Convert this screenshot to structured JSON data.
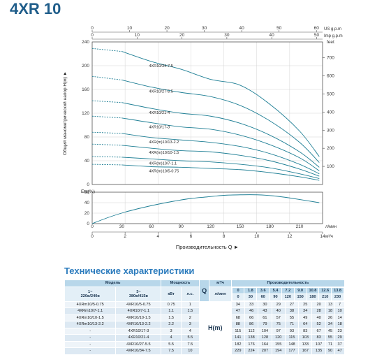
{
  "title": "4XR 10",
  "chart_data": [
    {
      "type": "line",
      "title": "4XR 10",
      "ylabel": "Общий манометрический напор H(м)",
      "ylabel_right": "feet",
      "xlim": [
        0,
        14
      ],
      "ylim": [
        0,
        240
      ],
      "x_ticks": [
        0,
        2,
        4,
        6,
        8,
        10,
        12,
        14
      ],
      "y_ticks": [
        0,
        40,
        80,
        120,
        160,
        200,
        240
      ],
      "feet_ticks": [
        100,
        200,
        300,
        400,
        500,
        600,
        700
      ],
      "feet_scale": 3.2808,
      "usgpm_label": "US g.p.m",
      "usgpm_ticks": [
        0,
        10,
        20,
        30,
        40,
        50,
        60
      ],
      "usgpm_per_m3h": 4.4029,
      "impgpm_label": "Imp g.p.m",
      "impgpm_ticks": [
        0,
        10,
        20,
        30,
        40,
        50
      ],
      "impgpm_per_m3h": 3.6662,
      "series": [
        {
          "name": "4XR10/34-7.5",
          "x": [
            0,
            1.8,
            3.6,
            5.4,
            7.2,
            9.0,
            10.8,
            12.6,
            13.8
          ],
          "y": [
            229,
            224,
            207,
            194,
            177,
            167,
            135,
            90,
            47
          ]
        },
        {
          "name": "4XR10/27-5.5",
          "x": [
            0,
            1.8,
            3.6,
            5.4,
            7.2,
            9.0,
            10.8,
            12.6,
            13.8
          ],
          "y": [
            182,
            176,
            164,
            155,
            148,
            133,
            107,
            71,
            37
          ]
        },
        {
          "name": "4XR10/21-4",
          "x": [
            0,
            1.8,
            3.6,
            5.4,
            7.2,
            9.0,
            10.8,
            12.6,
            13.8
          ],
          "y": [
            141,
            138,
            128,
            120,
            115,
            103,
            83,
            55,
            29
          ]
        },
        {
          "name": "4XR10/17-3",
          "x": [
            0,
            1.8,
            3.6,
            5.4,
            7.2,
            9.0,
            10.8,
            12.6,
            13.8
          ],
          "y": [
            115,
            112,
            104,
            97,
            93,
            83,
            67,
            45,
            23
          ]
        },
        {
          "name": "4XR(m)10/13-2.2",
          "x": [
            0,
            1.8,
            3.6,
            5.4,
            7.2,
            9.0,
            10.8,
            12.6,
            13.8
          ],
          "y": [
            88,
            86,
            79,
            75,
            71,
            64,
            52,
            34,
            18
          ]
        },
        {
          "name": "4XR(m)10/10-1.5",
          "x": [
            0,
            1.8,
            3.6,
            5.4,
            7.2,
            9.0,
            10.8,
            12.6,
            13.8
          ],
          "y": [
            68,
            66,
            61,
            57,
            55,
            49,
            40,
            26,
            14
          ]
        },
        {
          "name": "4XR(m)10/7-1.1",
          "x": [
            0,
            1.8,
            3.6,
            5.4,
            7.2,
            9.0,
            10.8,
            12.6,
            13.8
          ],
          "y": [
            47,
            46,
            43,
            40,
            38,
            34,
            28,
            18,
            10
          ]
        },
        {
          "name": "4XR(m)10/5-0.75",
          "x": [
            0,
            1.8,
            3.6,
            5.4,
            7.2,
            9.0,
            10.8,
            12.6,
            13.8
          ],
          "y": [
            34,
            33,
            30,
            29,
            27,
            25,
            20,
            13,
            7
          ]
        }
      ]
    },
    {
      "type": "line",
      "ylabel": "Eta(%)",
      "xlabel": "Производительность Q",
      "xlim": [
        0,
        14
      ],
      "ylim": [
        0,
        60
      ],
      "y_ticks": [
        0,
        20,
        40,
        60
      ],
      "x_ticks_lmin": [
        0,
        30,
        60,
        90,
        120,
        150,
        180,
        210,
        240
      ],
      "x_unit_lmin": "л/мин",
      "x_ticks_m3h": [
        0,
        2,
        4,
        6,
        8,
        10,
        12,
        14
      ],
      "x_unit_m3h": "м³/ч",
      "series": [
        {
          "x": [
            0,
            1,
            2,
            3,
            4,
            5,
            6,
            7,
            8,
            9,
            10,
            11,
            12,
            13.8
          ],
          "y": [
            0,
            12,
            22,
            30,
            37,
            43,
            48,
            51,
            54,
            55,
            55,
            53,
            49,
            40
          ]
        }
      ]
    }
  ],
  "table": {
    "section_title": "Технические характеристики",
    "h_model": "Модель",
    "h_power": "Мощность",
    "h_perf": "Производительность",
    "h_q": "Q",
    "h_m3h": "м³/ч",
    "h_lmin": "л/мин",
    "h_v1": "1~\n220в/240в",
    "h_v3": "3~\n380в/415в",
    "h_kw": "кВт",
    "h_hp": "л.с.",
    "h_head": "H(m)",
    "q_m3h": [
      "0",
      "1.8",
      "3.6",
      "5.4",
      "7.2",
      "9.0",
      "10.8",
      "12.6",
      "13.8"
    ],
    "q_lmin": [
      "0",
      "30",
      "60",
      "90",
      "120",
      "150",
      "180",
      "210",
      "230"
    ],
    "rows": [
      {
        "m1": "4XRm10/5-0.75",
        "m3": "4XR10/5-0.75",
        "kw": "0.75",
        "hp": "1",
        "h": [
          "34",
          "33",
          "30",
          "29",
          "27",
          "25",
          "20",
          "13",
          "7"
        ]
      },
      {
        "m1": "4XRm10/7-1.1",
        "m3": "4XR10/7-1.1",
        "kw": "1.1",
        "hp": "1.5",
        "h": [
          "47",
          "46",
          "43",
          "40",
          "38",
          "34",
          "28",
          "18",
          "10"
        ]
      },
      {
        "m1": "4XRm10/10-1.5",
        "m3": "4XR10/10-1.5",
        "kw": "1.5",
        "hp": "2",
        "h": [
          "68",
          "66",
          "61",
          "57",
          "55",
          "49",
          "40",
          "26",
          "14"
        ]
      },
      {
        "m1": "4XRm10/13-2.2",
        "m3": "4XR10/13-2.2",
        "kw": "2.2",
        "hp": "3",
        "h": [
          "88",
          "86",
          "79",
          "75",
          "71",
          "64",
          "52",
          "34",
          "18"
        ]
      },
      {
        "m1": "-",
        "m3": "4XR10/17-3",
        "kw": "3",
        "hp": "4",
        "h": [
          "115",
          "112",
          "104",
          "97",
          "93",
          "83",
          "67",
          "45",
          "23"
        ]
      },
      {
        "m1": "-",
        "m3": "4XR10/21-4",
        "kw": "4",
        "hp": "5.5",
        "h": [
          "141",
          "138",
          "128",
          "120",
          "115",
          "103",
          "83",
          "55",
          "29"
        ]
      },
      {
        "m1": "-",
        "m3": "4XR10/27-5.5",
        "kw": "5.5",
        "hp": "7.5",
        "h": [
          "182",
          "176",
          "164",
          "155",
          "148",
          "133",
          "107",
          "71",
          "37"
        ]
      },
      {
        "m1": "-",
        "m3": "4XR10/34-7.5",
        "kw": "7.5",
        "hp": "10",
        "h": [
          "229",
          "224",
          "207",
          "194",
          "177",
          "167",
          "135",
          "90",
          "47"
        ]
      }
    ]
  }
}
